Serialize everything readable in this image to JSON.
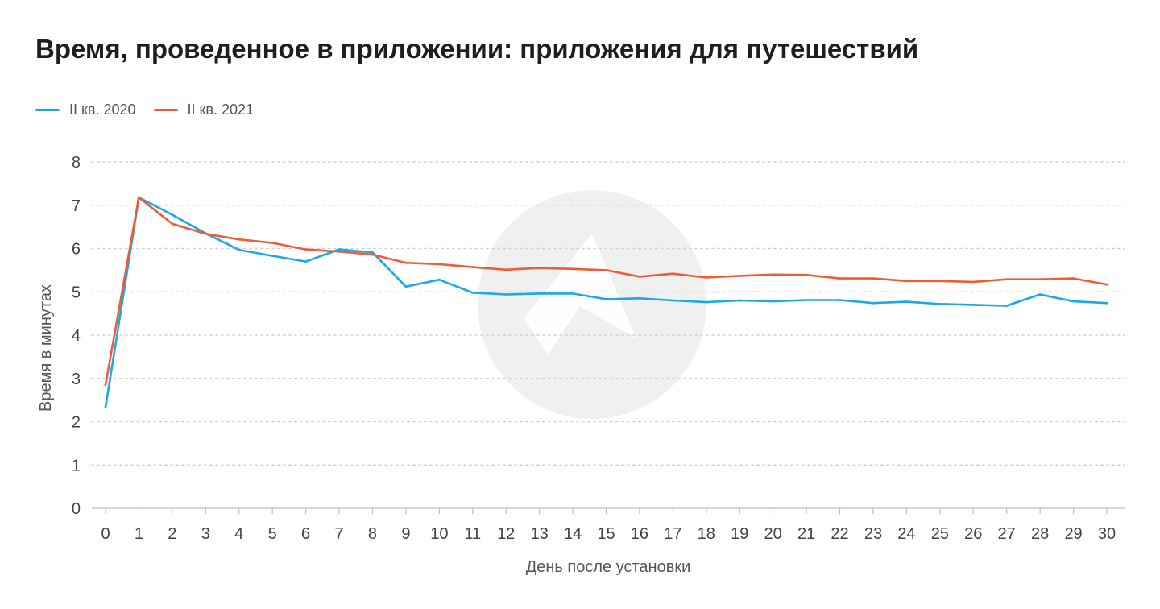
{
  "chart_data": {
    "type": "line",
    "title": "Время, проведенное в приложении: приложения для путешествий",
    "xlabel": "День после установки",
    "ylabel": "Время в минутах",
    "x": [
      0,
      1,
      2,
      3,
      4,
      5,
      6,
      7,
      8,
      9,
      10,
      11,
      12,
      13,
      14,
      15,
      16,
      17,
      18,
      19,
      20,
      21,
      22,
      23,
      24,
      25,
      26,
      27,
      28,
      29,
      30
    ],
    "ylim": [
      0,
      8
    ],
    "yticks": [
      0,
      1,
      2,
      3,
      4,
      5,
      6,
      7,
      8
    ],
    "grid": true,
    "legend_position": "top-left",
    "series": [
      {
        "name": "II кв. 2020",
        "color": "#1aa7ec",
        "values": [
          2.33,
          7.18,
          6.78,
          6.35,
          5.97,
          5.83,
          5.7,
          5.98,
          5.91,
          5.12,
          5.28,
          4.98,
          4.94,
          4.96,
          4.96,
          4.83,
          4.85,
          4.8,
          4.76,
          4.8,
          4.78,
          4.81,
          4.81,
          4.74,
          4.77,
          4.72,
          4.7,
          4.68,
          4.94,
          4.78,
          4.74
        ]
      },
      {
        "name": "II кв. 2021",
        "color": "#f05a35",
        "values": [
          2.85,
          7.18,
          6.57,
          6.34,
          6.21,
          6.13,
          5.98,
          5.93,
          5.86,
          5.67,
          5.64,
          5.57,
          5.51,
          5.55,
          5.53,
          5.5,
          5.35,
          5.42,
          5.33,
          5.37,
          5.4,
          5.39,
          5.31,
          5.31,
          5.25,
          5.25,
          5.23,
          5.29,
          5.29,
          5.31,
          5.17
        ]
      }
    ]
  },
  "colors": {
    "grid": "#cfcfcf",
    "axis": "#bdbdbd",
    "watermark": "#f0f0f0"
  },
  "watermark_icon": "app-logo-icon"
}
